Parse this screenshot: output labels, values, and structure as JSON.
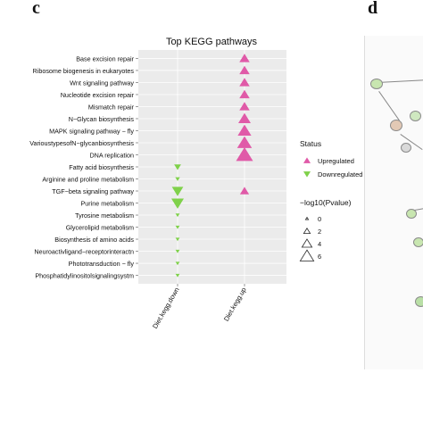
{
  "panel_labels": {
    "left": "c",
    "right": "d"
  },
  "colors": {
    "upregulated": "#e05aa8",
    "downregulated": "#7fd14a",
    "panel_bg": "#ebebeb",
    "grid": "#ffffff"
  },
  "chart_data": {
    "type": "scatter",
    "title": "Top KEGG pathways",
    "categories_x": [
      "Diet.kegg.down",
      "Diet.kegg.up"
    ],
    "pathways": [
      "Base excision repair",
      "Ribosome biogenesis in eukaryotes",
      "Wnt signaling pathway",
      "Nucleotide excision repair",
      "Mismatch repair",
      "N−Glycan biosynthesis",
      "MAPK signaling pathway − fly",
      "VarioustypesofN−glycanbiosynthesis",
      "DNA replication",
      "Fatty acid biosynthesis",
      "Arginine and proline metabolism",
      "TGF−beta signaling pathway",
      "Purine metabolism",
      "Tyrosine metabolism",
      "Glycerolipid metabolism",
      "Biosynthesis of amino acids",
      "Neuroactivligand−receptorinteractn",
      "Phototransduction − fly",
      "Phosphatidylinositolsignalingsystm"
    ],
    "points": [
      {
        "pathway": "Base excision repair",
        "x": "Diet.kegg.up",
        "status": "Upregulated",
        "neg_log10_p": 3.0
      },
      {
        "pathway": "Ribosome biogenesis in eukaryotes",
        "x": "Diet.kegg.up",
        "status": "Upregulated",
        "neg_log10_p": 3.0
      },
      {
        "pathway": "Wnt signaling pathway",
        "x": "Diet.kegg.up",
        "status": "Upregulated",
        "neg_log10_p": 3.0
      },
      {
        "pathway": "Nucleotide excision repair",
        "x": "Diet.kegg.up",
        "status": "Upregulated",
        "neg_log10_p": 3.0
      },
      {
        "pathway": "Mismatch repair",
        "x": "Diet.kegg.up",
        "status": "Upregulated",
        "neg_log10_p": 3.0
      },
      {
        "pathway": "N−Glycan biosynthesis",
        "x": "Diet.kegg.up",
        "status": "Upregulated",
        "neg_log10_p": 4.0
      },
      {
        "pathway": "MAPK signaling pathway − fly",
        "x": "Diet.kegg.up",
        "status": "Upregulated",
        "neg_log10_p": 4.5
      },
      {
        "pathway": "VarioustypesofN−glycanbiosynthesis",
        "x": "Diet.kegg.up",
        "status": "Upregulated",
        "neg_log10_p": 5.0
      },
      {
        "pathway": "DNA replication",
        "x": "Diet.kegg.up",
        "status": "Upregulated",
        "neg_log10_p": 6.0
      },
      {
        "pathway": "Fatty acid biosynthesis",
        "x": "Diet.kegg.down",
        "status": "Downregulated",
        "neg_log10_p": 1.5
      },
      {
        "pathway": "Arginine and proline metabolism",
        "x": "Diet.kegg.down",
        "status": "Downregulated",
        "neg_log10_p": 0.5
      },
      {
        "pathway": "TGF−beta signaling pathway",
        "x": "Diet.kegg.down",
        "status": "Downregulated",
        "neg_log10_p": 3.5
      },
      {
        "pathway": "TGF−beta signaling pathway",
        "x": "Diet.kegg.up",
        "status": "Upregulated",
        "neg_log10_p": 2.5
      },
      {
        "pathway": "Purine metabolism",
        "x": "Diet.kegg.down",
        "status": "Downregulated",
        "neg_log10_p": 4.0
      },
      {
        "pathway": "Tyrosine metabolism",
        "x": "Diet.kegg.down",
        "status": "Downregulated",
        "neg_log10_p": 0.3
      },
      {
        "pathway": "Glycerolipid metabolism",
        "x": "Diet.kegg.down",
        "status": "Downregulated",
        "neg_log10_p": 0.3
      },
      {
        "pathway": "Biosynthesis of amino acids",
        "x": "Diet.kegg.down",
        "status": "Downregulated",
        "neg_log10_p": 0.3
      },
      {
        "pathway": "Neuroactivligand−receptorinteractn",
        "x": "Diet.kegg.down",
        "status": "Downregulated",
        "neg_log10_p": 0.3
      },
      {
        "pathway": "Phototransduction − fly",
        "x": "Diet.kegg.down",
        "status": "Downregulated",
        "neg_log10_p": 0.3
      },
      {
        "pathway": "Phosphatidylinositolsignalingsystm",
        "x": "Diet.kegg.down",
        "status": "Downregulated",
        "neg_log10_p": 0.3
      }
    ],
    "legend": {
      "status_title": "Status",
      "status_items": [
        {
          "label": "Upregulated",
          "status": "Upregulated"
        },
        {
          "label": "Downregulated",
          "status": "Downregulated"
        }
      ],
      "size_title": "−log10(Pvalue)",
      "size_items": [
        {
          "label": "0",
          "value": 0
        },
        {
          "label": "2",
          "value": 2
        },
        {
          "label": "4",
          "value": 4
        },
        {
          "label": "6",
          "value": 6
        }
      ],
      "placement": "right"
    },
    "grid": true
  }
}
